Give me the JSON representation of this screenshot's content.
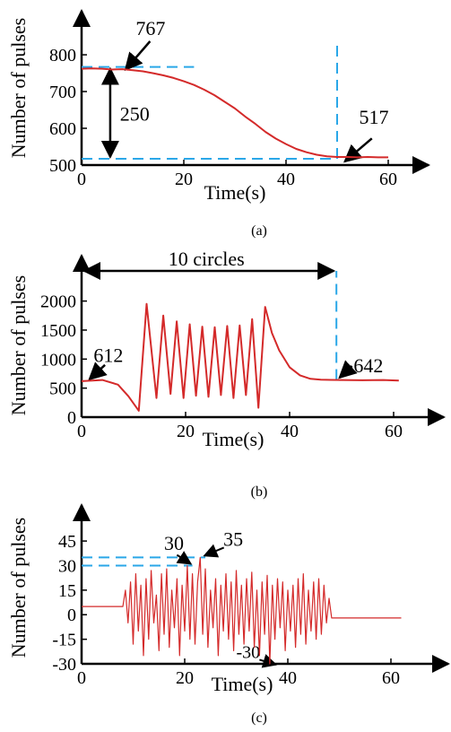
{
  "colors": {
    "data_line": "#d42a2a",
    "guide": "#2aa7e8",
    "axis": "#000000"
  },
  "chart_data": [
    {
      "panel": "(a)",
      "type": "line",
      "xlabel": "Time(s)",
      "ylabel": "Number of pulses",
      "xlim": [
        0,
        64
      ],
      "ylim": [
        500,
        845
      ],
      "xticks": [
        0,
        20,
        40,
        60
      ],
      "yticks": [
        500,
        600,
        700,
        800
      ],
      "series": [
        {
          "x": [
            0,
            2,
            4,
            6,
            8,
            10,
            12,
            14,
            16,
            18,
            20,
            22,
            24,
            26,
            28,
            30,
            32,
            34,
            36,
            38,
            40,
            42,
            44,
            46,
            48,
            50,
            52,
            54,
            56,
            58,
            60
          ],
          "y": [
            762,
            763,
            762,
            760,
            761,
            758,
            755,
            750,
            744,
            737,
            728,
            718,
            705,
            690,
            672,
            654,
            632,
            612,
            590,
            572,
            557,
            544,
            535,
            528,
            524,
            522,
            522,
            521,
            522,
            521,
            521
          ]
        }
      ],
      "annotations": [
        {
          "text": "767",
          "x": 8,
          "y": 767
        },
        {
          "text": "250"
        },
        {
          "text": "517",
          "x": 50,
          "y": 517
        }
      ]
    },
    {
      "panel": "(b)",
      "type": "line",
      "xlabel": "Time(s)",
      "ylabel": "Number of pulses",
      "xlim": [
        0,
        64
      ],
      "ylim": [
        0,
        2300
      ],
      "xticks": [
        0,
        20,
        40,
        60
      ],
      "yticks": [
        0,
        500,
        1000,
        1500,
        2000
      ],
      "series": [
        {
          "x": [
            0,
            4,
            7,
            9,
            11,
            12.5,
            14.4,
            15.7,
            17.1,
            18.3,
            19.6,
            20.8,
            22.0,
            23.2,
            24.4,
            25.6,
            26.8,
            28.0,
            29.2,
            30.4,
            31.6,
            32.8,
            34.0,
            35.3,
            36.6,
            38,
            40,
            42,
            44,
            46,
            48,
            50,
            54,
            58,
            61
          ],
          "y": [
            620,
            640,
            560,
            360,
            110,
            1950,
            330,
            1750,
            400,
            1650,
            330,
            1600,
            370,
            1560,
            350,
            1550,
            380,
            1570,
            330,
            1580,
            380,
            1690,
            160,
            1900,
            1450,
            1150,
            860,
            720,
            660,
            645,
            642,
            640,
            635,
            640,
            630
          ]
        }
      ],
      "annotations": [
        {
          "text": "10 circles"
        },
        {
          "text": "612",
          "x": 1,
          "y": 612
        },
        {
          "text": "642",
          "x": 48,
          "y": 642
        }
      ]
    },
    {
      "panel": "(c)",
      "type": "line",
      "xlabel": "Time(s)",
      "ylabel": "Number of pulses",
      "xlim": [
        0,
        64
      ],
      "ylim": [
        -30,
        50
      ],
      "xticks": [
        0,
        20,
        40,
        60
      ],
      "yticks": [
        -30,
        -15,
        0,
        15,
        30,
        45
      ],
      "series": [
        {
          "x": [
            0,
            8,
            8.5,
            9,
            9.5,
            10,
            10.5,
            11,
            11.5,
            12,
            12.5,
            13,
            13.5,
            14,
            14.5,
            15,
            15.5,
            16,
            16.5,
            17,
            17.5,
            18,
            18.5,
            19,
            19.5,
            20,
            20.5,
            21,
            21.5,
            22,
            22.5,
            23,
            23.5,
            24,
            24.5,
            25,
            25.5,
            26,
            26.5,
            27,
            27.5,
            28,
            28.5,
            29,
            29.5,
            30,
            30.5,
            31,
            31.5,
            32,
            32.5,
            33,
            33.5,
            34,
            34.5,
            35,
            35.5,
            36,
            36.5,
            37,
            37.5,
            38,
            38.5,
            39,
            39.5,
            40,
            40.5,
            41,
            41.5,
            42,
            42.5,
            43,
            43.5,
            44,
            44.5,
            45,
            45.5,
            46,
            46.5,
            47,
            47.5,
            48,
            48.5,
            62
          ],
          "y": [
            5,
            5,
            15,
            -5,
            20,
            -18,
            25,
            -10,
            18,
            -25,
            22,
            -15,
            27,
            -5,
            12,
            -22,
            25,
            -12,
            28,
            -20,
            15,
            -8,
            22,
            -25,
            18,
            -10,
            30,
            -15,
            25,
            -18,
            20,
            35,
            -12,
            28,
            -20,
            15,
            -8,
            22,
            -25,
            18,
            -10,
            25,
            -15,
            20,
            -22,
            27,
            -12,
            18,
            -18,
            22,
            -10,
            26,
            -20,
            15,
            -25,
            20,
            -12,
            24,
            -30,
            18,
            -15,
            22,
            -8,
            20,
            -22,
            15,
            -10,
            18,
            -20,
            22,
            -12,
            25,
            -18,
            15,
            -10,
            20,
            -15,
            22,
            -12,
            18,
            -5,
            10,
            -2,
            -2
          ]
        }
      ],
      "annotations": [
        {
          "text": "30",
          "x": 21,
          "y": 30
        },
        {
          "text": "35",
          "x": 23,
          "y": 35
        },
        {
          "text": "-30",
          "x": 38,
          "y": -30
        }
      ]
    }
  ],
  "captions": [
    "(a)",
    "(b)",
    "(c)"
  ]
}
